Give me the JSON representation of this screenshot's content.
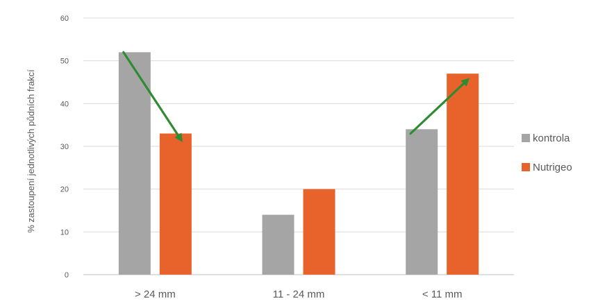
{
  "chart_data": {
    "type": "bar",
    "title": "",
    "xlabel": "",
    "ylabel": "% zastoupení jednotlivých půdních frakcí",
    "ylim": [
      0,
      60
    ],
    "yticks": [
      0,
      10,
      20,
      30,
      40,
      50,
      60
    ],
    "grid": true,
    "categories": [
      "> 24 mm",
      "11 - 24 mm",
      "< 11 mm"
    ],
    "series": [
      {
        "name": "kontrola",
        "color": "#a5a5a5",
        "values": [
          52,
          14,
          34
        ]
      },
      {
        "name": "Nutrigeo",
        "color": "#e8632b",
        "values": [
          33,
          20,
          47
        ]
      }
    ],
    "legend_position": "right",
    "annotations": [
      {
        "type": "arrow",
        "color": "#2e8b34",
        "from": {
          "category": "> 24 mm",
          "series": "kontrola",
          "value": 52
        },
        "to": {
          "category": "> 24 mm",
          "series": "Nutrigeo",
          "value": 31
        }
      },
      {
        "type": "arrow",
        "color": "#2e8b34",
        "from": {
          "category": "< 11 mm",
          "series": "kontrola",
          "value": 33
        },
        "to": {
          "category": "< 11 mm",
          "series": "Nutrigeo",
          "value": 46
        }
      }
    ]
  }
}
